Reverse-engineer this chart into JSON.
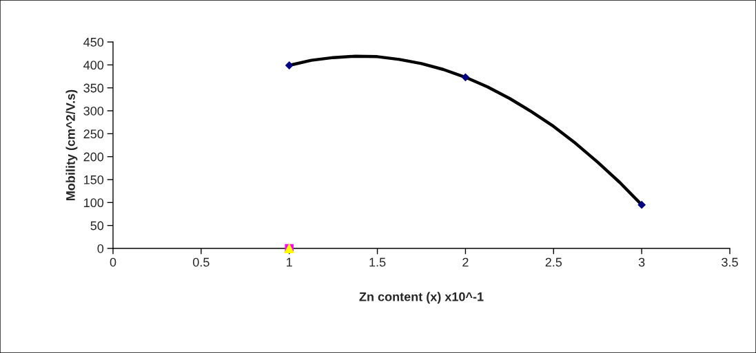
{
  "chart_data": {
    "type": "scatter",
    "xlabel": "Zn content (x) x10^-1",
    "ylabel": "Mobility (cm^2/V.s)",
    "xlim": [
      0,
      3.5
    ],
    "xticks": [
      0,
      0.5,
      1,
      1.5,
      2,
      2.5,
      3,
      3.5
    ],
    "ylim": [
      0,
      450
    ],
    "yticks": [
      0,
      50,
      100,
      150,
      200,
      250,
      300,
      350,
      400,
      450
    ],
    "grid": false,
    "legend": false,
    "series": [
      {
        "type": "line",
        "color": "#000000",
        "marker": "none",
        "line_style": "solid",
        "x": [
          1,
          1.125,
          1.25,
          1.375,
          1.5,
          1.625,
          1.75,
          1.875,
          2,
          2.125,
          2.25,
          2.375,
          2.5,
          2.625,
          2.75,
          2.875,
          3
        ],
        "values": [
          399,
          410,
          416,
          419,
          418,
          412,
          403,
          390,
          373,
          352,
          327,
          298,
          266,
          229,
          188,
          144,
          95
        ]
      },
      {
        "color": "#000080",
        "marker": "diamond",
        "x": [
          1,
          2,
          3
        ],
        "values": [
          399,
          373,
          95
        ]
      },
      {
        "color": "#ff00ff",
        "marker": "square",
        "x": [
          1
        ],
        "values": [
          0
        ]
      },
      {
        "color": "#ffff00",
        "marker": "triangle",
        "x": [
          1
        ],
        "values": [
          0
        ]
      }
    ]
  }
}
